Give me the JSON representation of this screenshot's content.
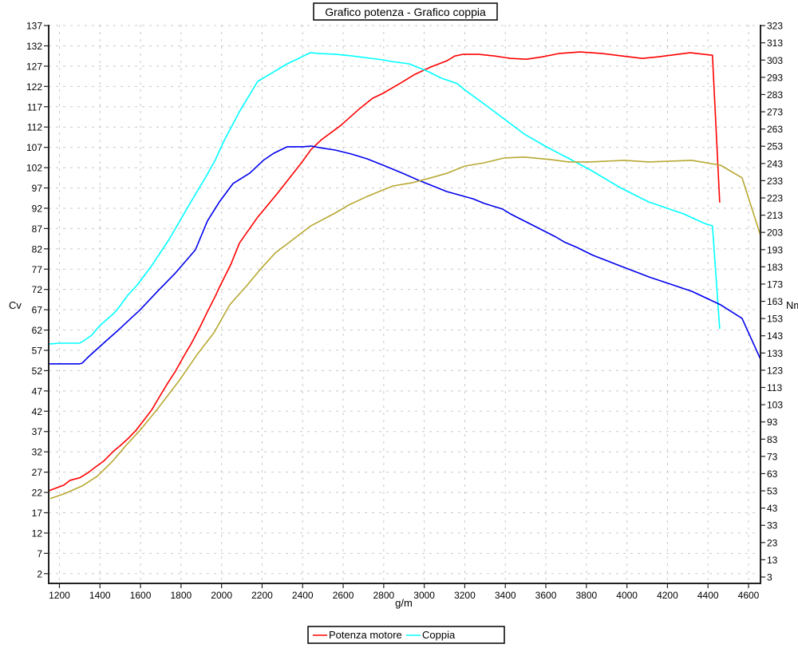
{
  "chart_data": {
    "type": "line",
    "title": "Grafico potenza - Grafico coppia",
    "xlabel": "g/m",
    "ylabel_left": "Cv",
    "ylabel_right": "Nm",
    "xlim": [
      1147,
      4659
    ],
    "ylim_left": [
      -0.4,
      137.2
    ],
    "ylim_right": [
      -0.7,
      323.5
    ],
    "x_ticks": [
      1200,
      1400,
      1600,
      1800,
      2000,
      2200,
      2400,
      2600,
      2800,
      3000,
      3200,
      3400,
      3600,
      3800,
      4000,
      4200,
      4400,
      4600
    ],
    "y_ticks_left": [
      2,
      7,
      12,
      17,
      22,
      27,
      32,
      37,
      42,
      47,
      52,
      57,
      62,
      67,
      72,
      77,
      82,
      87,
      92,
      97,
      102,
      107,
      112,
      117,
      122,
      127,
      132,
      137
    ],
    "y_ticks_right": [
      3,
      13,
      23,
      33,
      43,
      53,
      63,
      73,
      83,
      93,
      103,
      113,
      123,
      133,
      143,
      153,
      163,
      173,
      183,
      193,
      203,
      213,
      223,
      233,
      243,
      253,
      263,
      273,
      283,
      293,
      303,
      313,
      323
    ],
    "grid": true,
    "legend_placement": "bottom",
    "series": [
      {
        "name": "Potenza motore",
        "color": "#ff0000",
        "axis": "left",
        "x": [
          1147,
          1222,
          1253,
          1300,
          1340,
          1379,
          1418,
          1470,
          1497,
          1537,
          1576,
          1615,
          1655,
          1694,
          1733,
          1773,
          1812,
          1852,
          1891,
          1930,
          1970,
          1989,
          2048,
          2088,
          2178,
          2273,
          2391,
          2442,
          2493,
          2588,
          2678,
          2745,
          2796,
          2875,
          2954,
          3033,
          3111,
          3151,
          3190,
          3269,
          3348,
          3426,
          3505,
          3584,
          3663,
          3769,
          3879,
          3978,
          4076,
          4155,
          4312,
          4422,
          4458
        ],
        "y": [
          22.4,
          23.8,
          25.0,
          25.6,
          26.8,
          28.3,
          29.7,
          32.3,
          33.4,
          35.2,
          37.2,
          39.7,
          42.3,
          45.6,
          48.8,
          51.9,
          55.4,
          58.8,
          62.5,
          66.5,
          70.4,
          72.5,
          78.4,
          83.4,
          89.8,
          95.5,
          103.0,
          106.5,
          108.9,
          112.4,
          116.4,
          119.1,
          120.3,
          122.6,
          125.0,
          126.8,
          128.3,
          129.5,
          129.9,
          129.9,
          129.5,
          128.9,
          128.7,
          129.3,
          130.1,
          130.5,
          130.1,
          129.5,
          128.9,
          129.3,
          130.3,
          129.7,
          93.4
        ]
      },
      {
        "name": "Coppia",
        "color": "#00ffff",
        "axis": "right",
        "x": [
          1147,
          1202,
          1300,
          1320,
          1359,
          1399,
          1458,
          1478,
          1497,
          1537,
          1584,
          1655,
          1741,
          1832,
          1922,
          1970,
          2009,
          2088,
          2178,
          2245,
          2324,
          2383,
          2438,
          2481,
          2560,
          2639,
          2796,
          2836,
          2926,
          3021,
          3084,
          3163,
          3202,
          3320,
          3399,
          3493,
          3596,
          3663,
          3702,
          3820,
          3966,
          4107,
          4281,
          4383,
          4422,
          4458
        ],
        "y": [
          138.2,
          138.7,
          138.7,
          140.1,
          143.3,
          148.9,
          154.9,
          157.2,
          160.0,
          166.5,
          172.5,
          183.6,
          198.9,
          217.4,
          235.1,
          245.2,
          255.4,
          273.0,
          290.6,
          295.3,
          300.8,
          304.1,
          307.3,
          306.8,
          306.4,
          305.5,
          303.1,
          302.2,
          300.8,
          296.2,
          292.5,
          289.3,
          285.5,
          275.4,
          268.4,
          260.1,
          253.1,
          249.0,
          246.6,
          239.2,
          229.0,
          220.7,
          213.7,
          208.2,
          206.8,
          147.0
        ]
      },
      {
        "color": "#0000ee",
        "axis": "right",
        "x": [
          1147,
          1300,
          1312,
          1340,
          1418,
          1497,
          1556,
          1596,
          1694,
          1773,
          1871,
          1930,
          1989,
          2056,
          2139,
          2206,
          2257,
          2324,
          2403,
          2442,
          2481,
          2560,
          2639,
          2718,
          2808,
          2902,
          2981,
          3111,
          3241,
          3296,
          3387,
          3426,
          3556,
          3650,
          3690,
          3753,
          3832,
          3966,
          4068,
          4107,
          4320,
          4462,
          4568,
          4659
        ],
        "y": [
          126.7,
          126.7,
          127.1,
          130.4,
          138.7,
          147.0,
          153.5,
          157.8,
          170.0,
          179.5,
          192.9,
          209.6,
          220.7,
          231.3,
          237.4,
          244.8,
          248.9,
          252.7,
          252.7,
          253.1,
          252.2,
          250.8,
          248.5,
          245.7,
          241.5,
          236.9,
          232.8,
          226.7,
          222.5,
          219.8,
          216.5,
          213.7,
          205.9,
          200.3,
          197.5,
          194.3,
          189.7,
          183.6,
          179.0,
          177.2,
          168.8,
          161.0,
          153.1,
          129.4
        ]
      },
      {
        "color": "#b8a832",
        "axis": "left",
        "x": [
          1155,
          1230,
          1312,
          1387,
          1466,
          1529,
          1596,
          1686,
          1792,
          1883,
          1962,
          2040,
          2127,
          2194,
          2265,
          2336,
          2442,
          2560,
          2627,
          2718,
          2796,
          2847,
          2942,
          3033,
          3111,
          3202,
          3296,
          3395,
          3493,
          3623,
          3713,
          3820,
          3989,
          4107,
          4320,
          4462,
          4568,
          4659
        ],
        "y": [
          20.5,
          21.8,
          23.6,
          26.0,
          29.9,
          33.6,
          37.2,
          42.7,
          49.6,
          56.2,
          61.3,
          68.2,
          73.1,
          77.1,
          81.0,
          83.7,
          87.7,
          90.8,
          92.8,
          94.9,
          96.5,
          97.5,
          98.3,
          99.5,
          100.6,
          102.4,
          103.2,
          104.4,
          104.6,
          104.0,
          103.4,
          103.4,
          103.8,
          103.4,
          103.8,
          102.6,
          99.5,
          85.3
        ]
      }
    ]
  },
  "legend": {
    "items": [
      {
        "label": "Potenza motore",
        "color": "#ff0000"
      },
      {
        "label": "Coppia",
        "color": "#00ffff"
      }
    ]
  }
}
